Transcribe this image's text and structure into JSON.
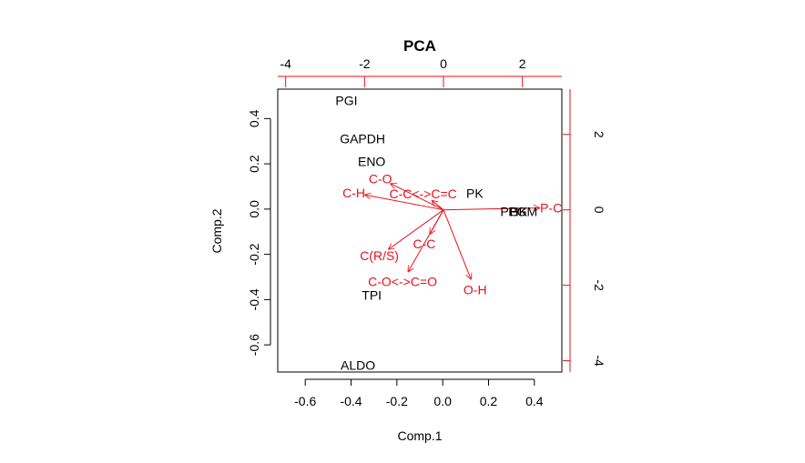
{
  "chart_data": {
    "type": "scatter",
    "title": "PCA",
    "xlabel": "Comp.1",
    "ylabel": "Comp.2",
    "xlim": [
      -0.72,
      0.52
    ],
    "ylim": [
      -0.72,
      0.53
    ],
    "x_ticks": [
      "-0.6",
      "-0.4",
      "-0.2",
      "0.0",
      "0.2",
      "0.4"
    ],
    "y_ticks": [
      "-0.6",
      "-0.4",
      "-0.2",
      "0.0",
      "0.2",
      "0.4"
    ],
    "loading_xlim": [
      -4.2,
      3.0
    ],
    "loading_ylim": [
      -4.3,
      3.2
    ],
    "loading_x_ticks": [
      "-4",
      "-2",
      "0",
      "2"
    ],
    "loading_y_ticks": [
      "-4",
      "-2",
      "0",
      "2"
    ],
    "score_color": "#000000",
    "loading_color": "#e8101a",
    "scores": [
      {
        "label": "PGI",
        "x": -0.42,
        "y": 0.48
      },
      {
        "label": "GAPDH",
        "x": -0.35,
        "y": 0.31
      },
      {
        "label": "ENO",
        "x": -0.31,
        "y": 0.21
      },
      {
        "label": "PK",
        "x": 0.14,
        "y": 0.07
      },
      {
        "label": "PGK",
        "x": 0.31,
        "y": -0.01
      },
      {
        "label": "HK",
        "x": 0.33,
        "y": -0.01
      },
      {
        "label": "PGM",
        "x": 0.35,
        "y": -0.01
      },
      {
        "label": "TPI",
        "x": -0.31,
        "y": -0.38
      },
      {
        "label": "ALDO",
        "x": -0.37,
        "y": -0.69
      }
    ],
    "loadings": [
      {
        "label": "C-O",
        "x": -1.35,
        "y": 0.7
      },
      {
        "label": "C-H",
        "x": -2.0,
        "y": 0.4
      },
      {
        "label": "C-C<->C=C",
        "x": -0.3,
        "y": 0.25
      },
      {
        "label": "C(R/S)",
        "x": -1.4,
        "y": -1.05
      },
      {
        "label": "C-C",
        "x": -0.35,
        "y": -0.65
      },
      {
        "label": "C-O<->C=O",
        "x": -0.9,
        "y": -1.65
      },
      {
        "label": "O-H",
        "x": 0.7,
        "y": -1.85
      },
      {
        "label": "P-C",
        "x": 2.45,
        "y": 0.05
      }
    ]
  }
}
